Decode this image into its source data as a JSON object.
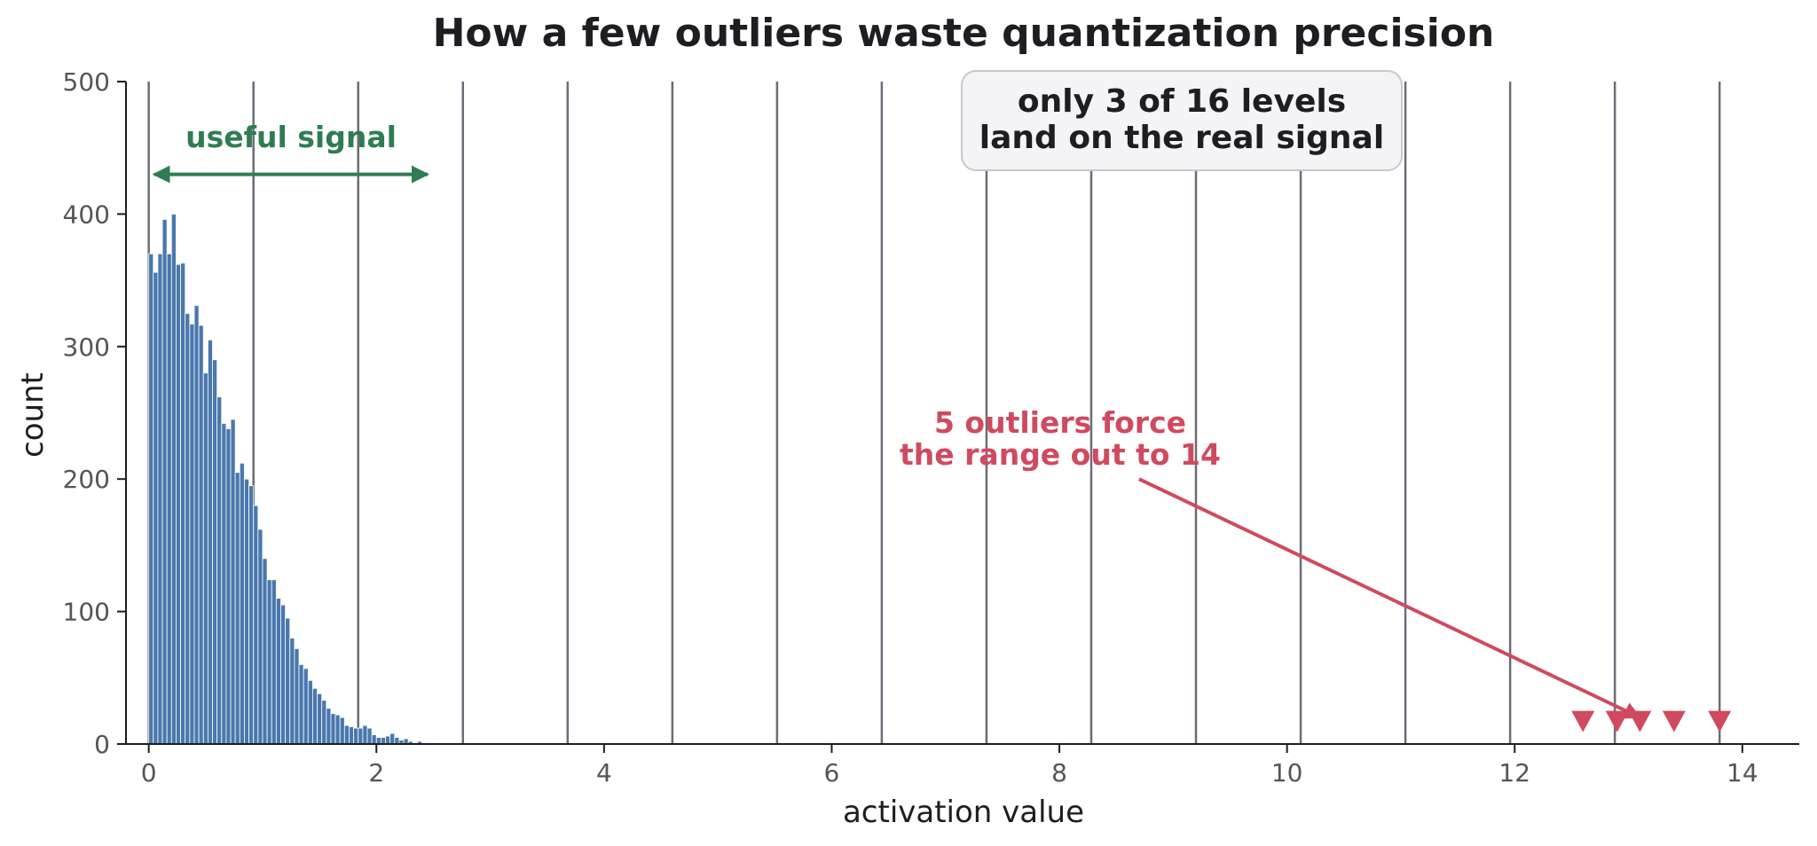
{
  "chart_data": {
    "type": "bar",
    "title": "How a few outliers waste quantization precision",
    "xlabel": "activation value",
    "ylabel": "count",
    "xlim": [
      -0.2,
      14.5
    ],
    "ylim": [
      0,
      500
    ],
    "xticks": [
      0,
      2,
      4,
      6,
      8,
      10,
      12,
      14
    ],
    "yticks": [
      0,
      100,
      200,
      300,
      400,
      500
    ],
    "bin_width": 0.04,
    "histogram": {
      "bin_start": 0.0,
      "counts": [
        370,
        356,
        370,
        396,
        370,
        400,
        362,
        363,
        325,
        317,
        331,
        316,
        280,
        305,
        290,
        262,
        242,
        238,
        245,
        205,
        212,
        200,
        195,
        180,
        162,
        140,
        124,
        124,
        110,
        105,
        95,
        80,
        72,
        60,
        57,
        48,
        42,
        38,
        33,
        27,
        23,
        22,
        20,
        14,
        13,
        12,
        12,
        14,
        12,
        7,
        5,
        5,
        6,
        8,
        5,
        3,
        4,
        2,
        1,
        2,
        1,
        1,
        1,
        0
      ]
    },
    "quantization_levels": [
      0.0,
      0.92,
      1.84,
      2.76,
      3.68,
      4.6,
      5.52,
      6.44,
      7.36,
      8.28,
      9.2,
      10.12,
      11.04,
      11.96,
      12.88,
      13.8
    ],
    "outliers": [
      12.6,
      12.9,
      13.1,
      13.4,
      13.8
    ],
    "colors": {
      "bars": "#4a78ad",
      "bar_edge": "#ffffff",
      "levels": "#6c6c78",
      "outliers": "#d04a5f",
      "useful_signal": "#2e7d52",
      "axis": "#1d1d22",
      "box_fill": "#f4f4f6",
      "box_edge": "#c8c8cc"
    },
    "annotations": {
      "useful_signal": {
        "label": "useful signal",
        "arrow_from": 0.0,
        "arrow_to": 2.45,
        "arrow_y": 430
      },
      "levels_box": {
        "line1": "only 3 of 16 levels",
        "line2": "land on the real signal"
      },
      "outlier_note": {
        "line1": "5 outliers force",
        "line2": "the range out to 14",
        "arrow_from": [
          8.7,
          200
        ],
        "arrow_to": [
          13.1,
          20
        ]
      }
    },
    "grid": false,
    "legend": "none"
  }
}
